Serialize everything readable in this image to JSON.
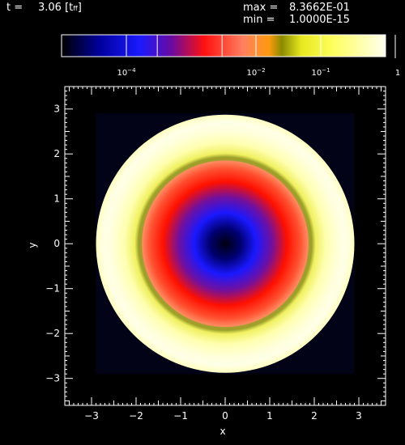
{
  "header": {
    "time_label": "t =",
    "time_value": "3.06",
    "time_unit_open": "[t",
    "time_unit_sub": "ff",
    "time_unit_close": "]",
    "max_label": "max =",
    "max_value": "8.3662E-01",
    "min_label": "min =",
    "min_value": "1.0000E-15"
  },
  "colorbar": {
    "scale": "log",
    "range": [
      1e-05,
      1.0
    ],
    "tick_labels": [
      {
        "base": "10",
        "exp": "-4",
        "value": 0.0001
      },
      {
        "base": "10",
        "exp": "-2",
        "value": 0.01
      },
      {
        "base": "10",
        "exp": "-1",
        "value": 0.1
      },
      {
        "base": "1",
        "exp": "",
        "value": 1.0
      }
    ],
    "marker_values": [
      0.0001,
      0.0003,
      0.003,
      0.01,
      0.1
    ]
  },
  "chart_data": {
    "type": "heatmap",
    "title": "",
    "xlabel": "x",
    "ylabel": "y",
    "xlim": [
      -3.6,
      3.6
    ],
    "ylim": [
      -3.6,
      3.5
    ],
    "x_ticks": [
      -3,
      -2,
      -1,
      0,
      1,
      2,
      3
    ],
    "y_ticks": [
      -3,
      -2,
      -1,
      0,
      1,
      2,
      3
    ],
    "data_extent": [
      -2.9,
      2.9
    ],
    "disk_radius": 2.9,
    "contour_radius": 1.9,
    "color_scale": "log",
    "value_max": 0.83662,
    "value_min": 1e-15,
    "radial_profile": [
      {
        "r": 0.0,
        "value": 3e-05
      },
      {
        "r": 0.4,
        "value": 0.0001
      },
      {
        "r": 0.7,
        "value": 0.0003
      },
      {
        "r": 1.0,
        "value": 0.0015
      },
      {
        "r": 1.3,
        "value": 0.01
      },
      {
        "r": 1.6,
        "value": 0.03
      },
      {
        "r": 1.9,
        "value": 0.1
      },
      {
        "r": 2.3,
        "value": 0.35
      },
      {
        "r": 2.6,
        "value": 0.7
      },
      {
        "r": 2.9,
        "value": 0.83
      }
    ],
    "background_value": 1e-05,
    "colors": {
      "background": "#000000",
      "axes": "#ffffff",
      "field_outside": "#030318",
      "contour": "#9aa028"
    },
    "grid": false
  }
}
